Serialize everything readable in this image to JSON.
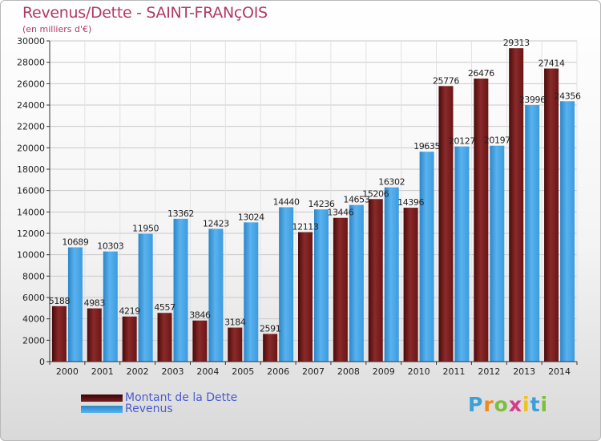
{
  "title": "Revenus/Dette - SAINT-FRANçOIS",
  "subtitle": "(en milliers d'€)",
  "colors": {
    "debt": "#7a1f1f",
    "revenue": "#3d9fe0",
    "title": "#b03a63",
    "legend_text": "#4a5bd0"
  },
  "legend": [
    {
      "label": "Montant de la Dette",
      "color": "#6b1515"
    },
    {
      "label": "Revenus",
      "color": "#3d9fe0"
    }
  ],
  "logo": {
    "text": "Proxiti",
    "letters": [
      "P",
      "r",
      "o",
      "x",
      "i",
      "t",
      "i"
    ]
  },
  "chart_data": {
    "type": "bar",
    "categories": [
      "2000",
      "2001",
      "2002",
      "2003",
      "2004",
      "2005",
      "2006",
      "2007",
      "2008",
      "2009",
      "2010",
      "2011",
      "2012",
      "2013",
      "2014"
    ],
    "series": [
      {
        "name": "Montant de la Dette",
        "values": [
          5188,
          4983,
          4219,
          4557,
          3846,
          3184,
          2591,
          12113,
          13446,
          15206,
          14396,
          25776,
          26476,
          29313,
          27414
        ]
      },
      {
        "name": "Revenus",
        "values": [
          10689,
          10303,
          11950,
          13362,
          12423,
          13024,
          14440,
          14236,
          14653,
          16302,
          19635,
          20127,
          20197,
          23996,
          24356
        ]
      }
    ],
    "data_labels": [
      [
        "5188",
        "4983",
        "4219",
        "4557",
        "3846",
        "3184",
        "2591",
        "12113",
        "13446",
        "15206",
        "14396",
        "25776",
        "26476",
        "29313",
        "27414"
      ],
      [
        "10689",
        "10303",
        "11950",
        "13362",
        "12423",
        "13024",
        "14440",
        "14236",
        "14653",
        "16302",
        "19635",
        "20127",
        "20197",
        "23996",
        "24356"
      ]
    ],
    "yticks": [
      "0",
      "2000",
      "4000",
      "6000",
      "8000",
      "10000",
      "12000",
      "14000",
      "16000",
      "18000",
      "20000",
      "22000",
      "24000",
      "26000",
      "28000",
      "30000"
    ],
    "ylim": [
      0,
      30000
    ],
    "grid": true,
    "legend_position": "bottom-left"
  }
}
